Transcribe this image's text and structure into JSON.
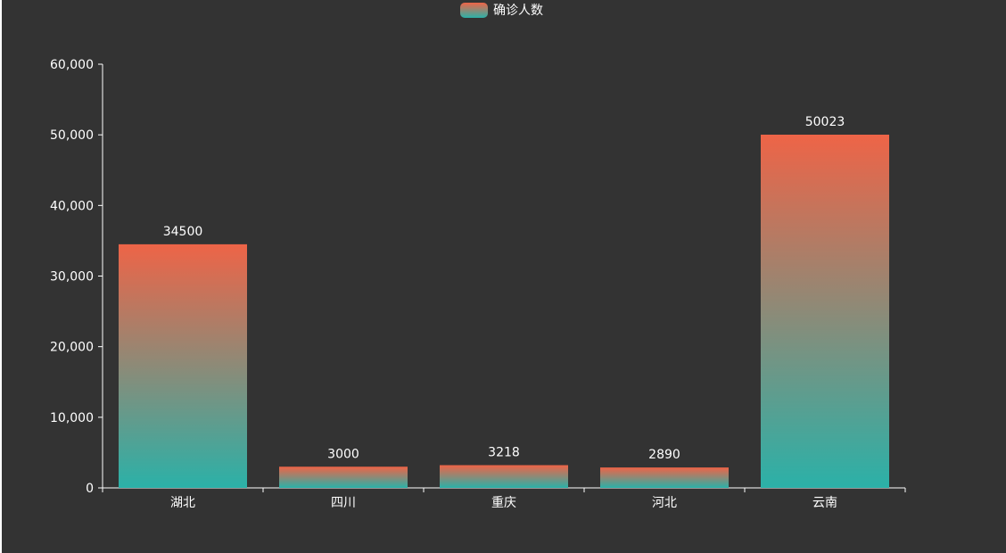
{
  "legend": {
    "items": [
      {
        "label": "确诊人数"
      }
    ],
    "position": "top-center"
  },
  "colors": {
    "background": "#333333",
    "gradient_top": "#ee6447",
    "gradient_bottom": "#2bb1a8",
    "text": "#ffffff",
    "axis": "#ffffff"
  },
  "chart_data": {
    "type": "bar",
    "categories": [
      "湖北",
      "四川",
      "重庆",
      "河北",
      "云南"
    ],
    "series": [
      {
        "name": "确诊人数",
        "values": [
          34500,
          3000,
          3218,
          2890,
          50023
        ]
      }
    ],
    "ylim": [
      0,
      60000
    ],
    "yticks": [
      0,
      10000,
      20000,
      30000,
      40000,
      50000,
      60000
    ],
    "ytick_labels": [
      "0",
      "10,000",
      "20,000",
      "30,000",
      "40,000",
      "50,000",
      "60,000"
    ],
    "data_labels": [
      "34500",
      "3000",
      "3218",
      "2890",
      "50023"
    ],
    "grid": false,
    "title": "",
    "xlabel": "",
    "ylabel": ""
  }
}
